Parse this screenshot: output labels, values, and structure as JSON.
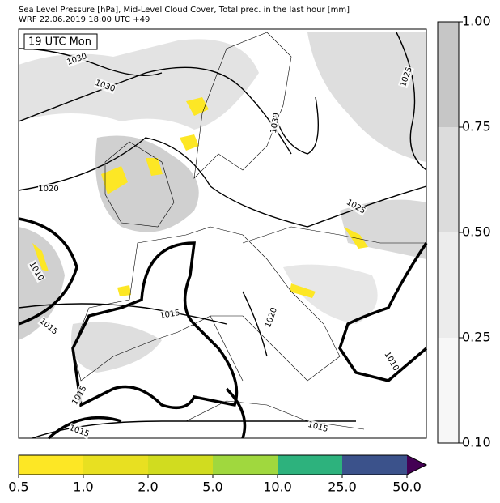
{
  "header": {
    "title": "Sea Level Pressure [hPa], Mid-Level Cloud Cover, Total prec. in the last hour [mm]",
    "subtitle": "WRF 22.06.2019 18:00 UTC +49"
  },
  "map": {
    "time_label": "19 UTC Mon",
    "isobar_labels": [
      "1030",
      "1030",
      "1025",
      "1030",
      "1020",
      "1025",
      "1010",
      "1015",
      "1015",
      "1020",
      "1015",
      "1015",
      "1015",
      "1010"
    ]
  },
  "cloud_colorbar": {
    "ticks": [
      "0.10",
      "0.25",
      "0.50",
      "0.75",
      "1.00"
    ],
    "colors": [
      "#f7f7f7",
      "#ececec",
      "#dcdcdc",
      "#c6c6c6"
    ]
  },
  "precip_colorbar": {
    "ticks": [
      "0.5",
      "1.0",
      "2.0",
      "5.0",
      "10.0",
      "25.0",
      "50.0"
    ],
    "colors": [
      "#fde725",
      "#e8e021",
      "#d1dc1f",
      "#a0d83e",
      "#2db27d",
      "#3b528b",
      "#440154"
    ]
  }
}
